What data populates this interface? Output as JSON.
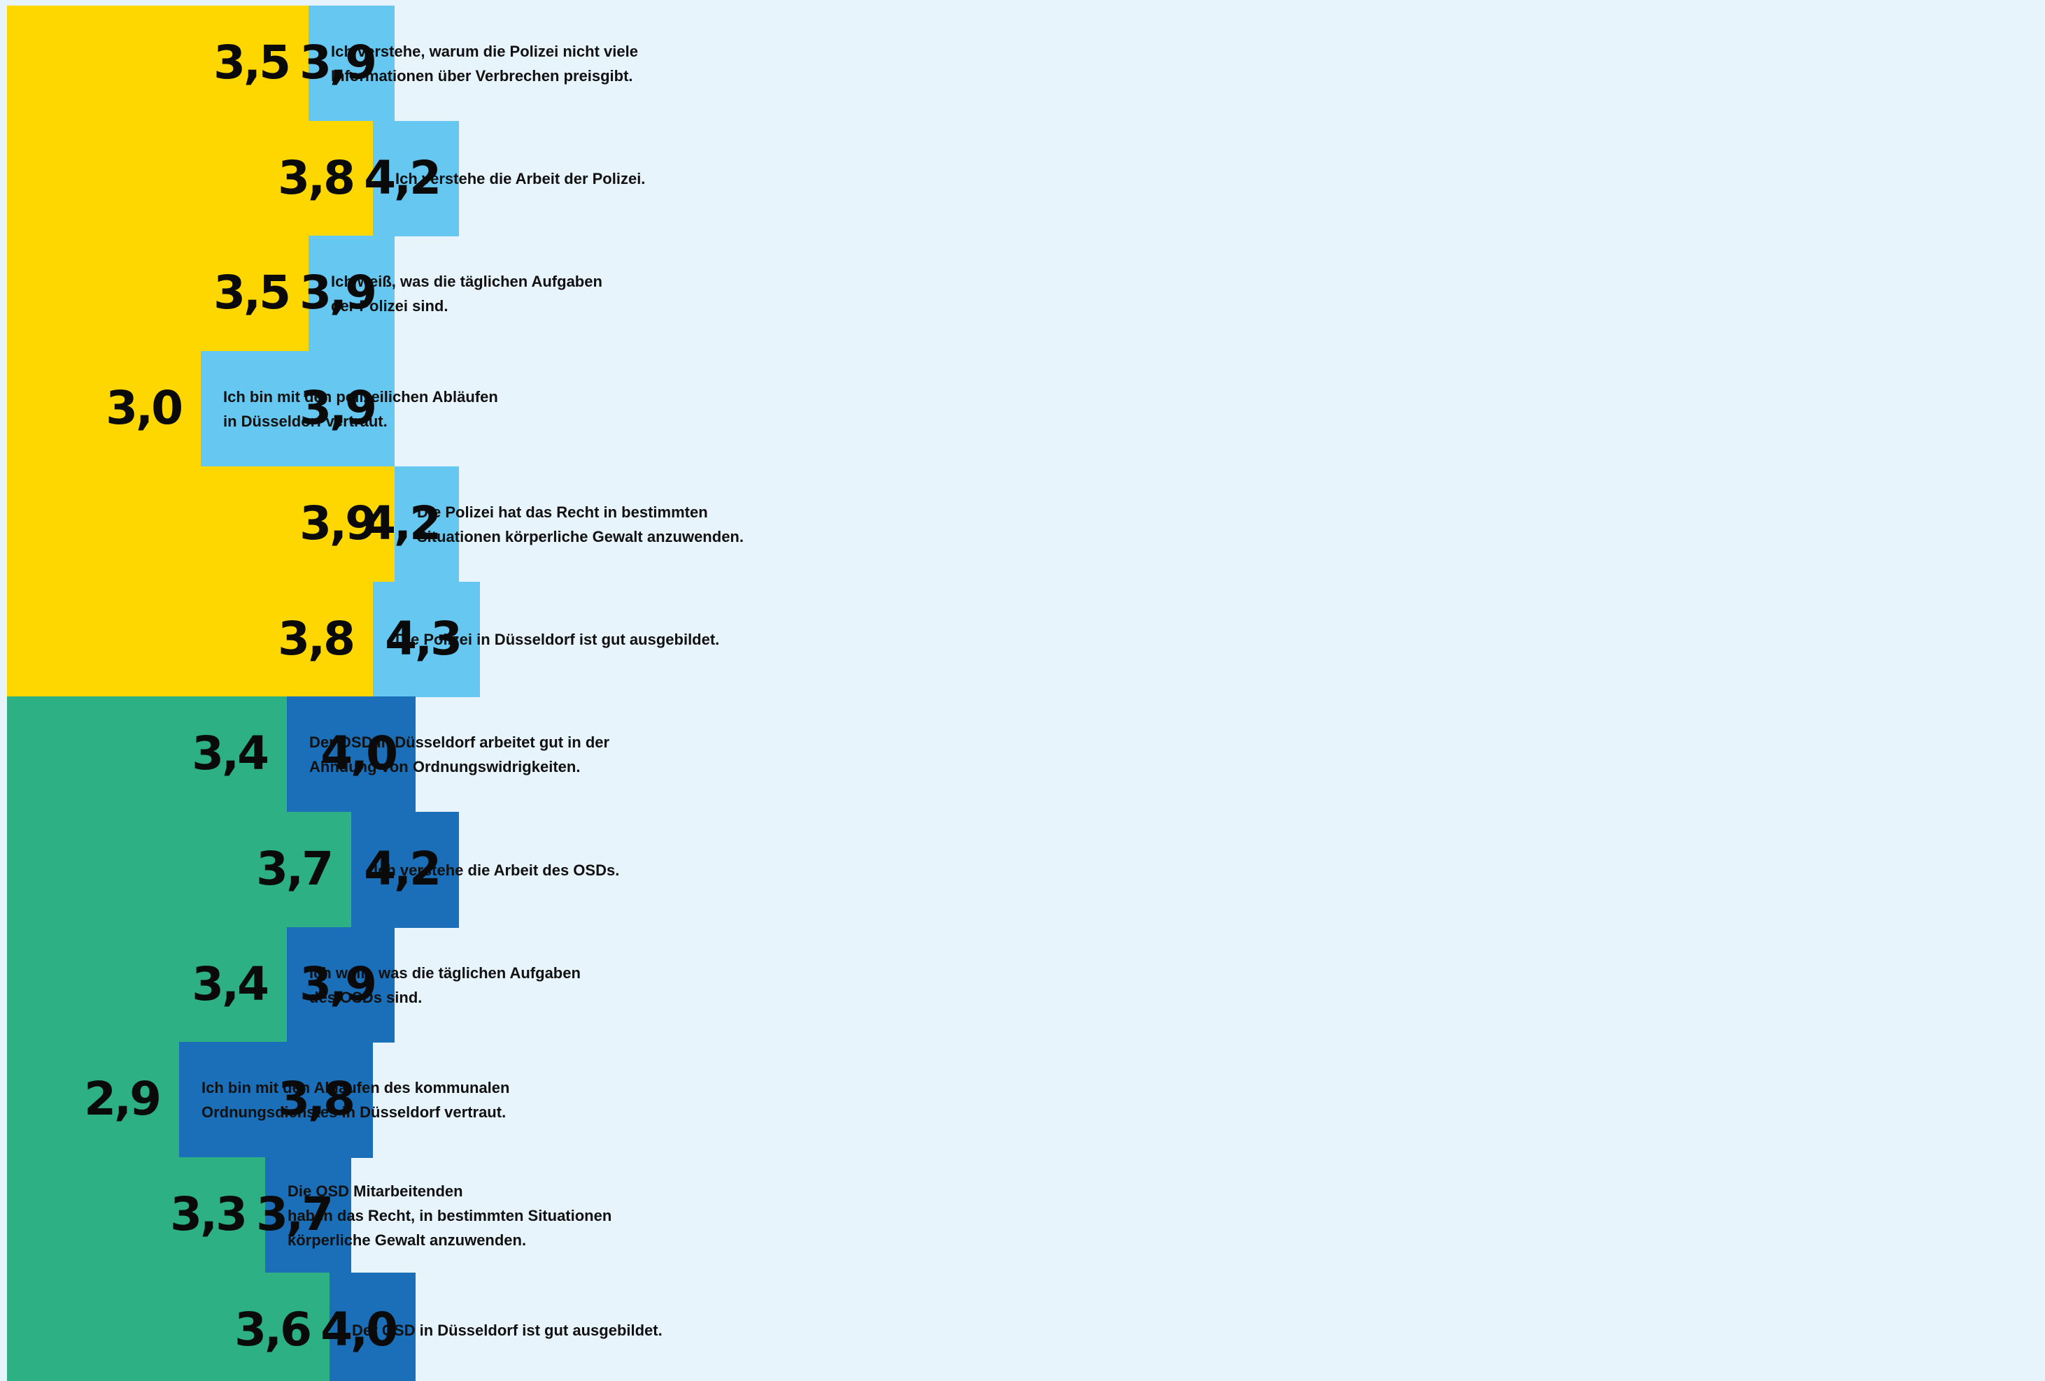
{
  "colors": {
    "background": "#e8f4fb",
    "group1_first": "#ffd700",
    "group1_second": "#66c7f0",
    "group2_first": "#2db083",
    "group2_second": "#1a6fb8"
  },
  "chart_data": {
    "type": "bar",
    "orientation": "horizontal",
    "stacked": true,
    "rows": [
      {
        "label": "Ich verstehe, warum die Polizei nicht viele\nInformationen über Verbrechen preisgibt.",
        "values": [
          3.5,
          3.9
        ],
        "display": [
          "3,5",
          "3,9"
        ],
        "group": 1
      },
      {
        "label": "Ich verstehe die Arbeit der Polizei.",
        "values": [
          3.8,
          4.2
        ],
        "display": [
          "3,8",
          "4,2"
        ],
        "group": 1
      },
      {
        "label": "Ich weiß, was die täglichen Aufgaben\nder Polizei sind.",
        "values": [
          3.5,
          3.9
        ],
        "display": [
          "3,5",
          "3,9"
        ],
        "group": 1
      },
      {
        "label": "Ich bin mit den polizeilichen Abläufen\nin Düsseldorf vertraut.",
        "values": [
          3.0,
          3.9
        ],
        "display": [
          "3,0",
          "3,9"
        ],
        "group": 1
      },
      {
        "label": "Die Polizei hat das Recht in bestimmten\nSituationen körperliche Gewalt anzuwenden.",
        "values": [
          3.9,
          4.2
        ],
        "display": [
          "3,9",
          "4,2"
        ],
        "group": 1
      },
      {
        "label": "Die Polizei in Düsseldorf ist gut ausgebildet.",
        "values": [
          3.8,
          4.3
        ],
        "display": [
          "3,8",
          "4,3"
        ],
        "group": 1
      },
      {
        "label": "Der OSD in Düsseldorf arbeitet gut in der\nAhndung von Ordnungswidrigkeiten.",
        "values": [
          3.4,
          4.0
        ],
        "display": [
          "3,4",
          "4,0"
        ],
        "group": 2
      },
      {
        "label": "Ich verstehe die Arbeit des OSDs.",
        "values": [
          3.7,
          4.2
        ],
        "display": [
          "3,7",
          "4,2"
        ],
        "group": 2
      },
      {
        "label": "Ich weiß, was die täglichen Aufgaben\ndes OSDs sind.",
        "values": [
          3.4,
          3.9
        ],
        "display": [
          "3,4",
          "3,9"
        ],
        "group": 2
      },
      {
        "label": "Ich bin mit den Abläufen des kommunalen\nOrdnungsdienstes in Düsseldorf vertraut.",
        "values": [
          2.9,
          3.8
        ],
        "display": [
          "2,9",
          "3,8"
        ],
        "group": 2
      },
      {
        "label": "Die OSD Mitarbeitenden\nhaben das Recht, in bestimmten Situationen\nkörperliche Gewalt anzuwenden.",
        "values": [
          3.3,
          3.7
        ],
        "display": [
          "3,3",
          "3,7"
        ],
        "group": 2
      },
      {
        "label": "Der OSD in Düsseldorf ist gut ausgebildet.",
        "values": [
          3.6,
          4.0
        ],
        "display": [
          "3,6",
          "4,0"
        ],
        "group": 2
      }
    ]
  }
}
